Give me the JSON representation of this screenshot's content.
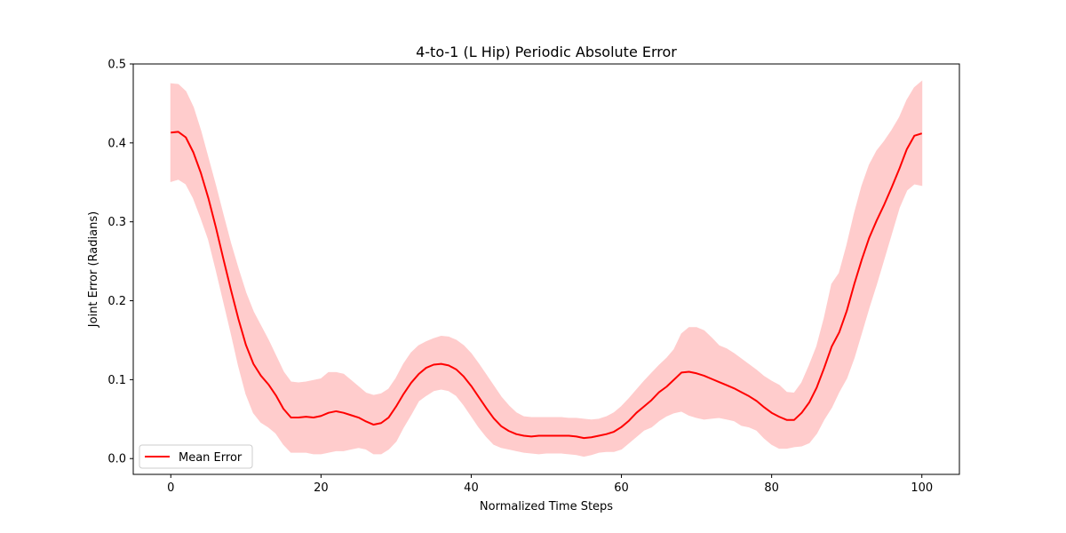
{
  "chart_data": {
    "type": "line",
    "title": "4-to-1 (L Hip) Periodic Absolute Error",
    "xlabel": "Normalized Time Steps",
    "ylabel": "Joint Error (Radians)",
    "xlim": [
      -5,
      105
    ],
    "ylim": [
      -0.02,
      0.5
    ],
    "xticks": [
      0,
      20,
      40,
      60,
      80,
      100
    ],
    "yticks": [
      0.0,
      0.1,
      0.2,
      0.3,
      0.4,
      0.5
    ],
    "xtick_labels": [
      "0",
      "20",
      "40",
      "60",
      "80",
      "100"
    ],
    "ytick_labels": [
      "0.0",
      "0.1",
      "0.2",
      "0.3",
      "0.4",
      "0.5"
    ],
    "grid": false,
    "legend_position": "lower-left",
    "series": [
      {
        "name": "Mean Error",
        "color": "#ff0000",
        "band_color": "#ffcccc",
        "x": [
          0,
          1,
          2,
          3,
          4,
          5,
          6,
          7,
          8,
          9,
          10,
          11,
          12,
          13,
          14,
          15,
          16,
          17,
          18,
          19,
          20,
          21,
          22,
          23,
          24,
          25,
          26,
          27,
          28,
          29,
          30,
          31,
          32,
          33,
          34,
          35,
          36,
          37,
          38,
          39,
          40,
          41,
          42,
          43,
          44,
          45,
          46,
          47,
          48,
          49,
          50,
          51,
          52,
          53,
          54,
          55,
          56,
          57,
          58,
          59,
          60,
          61,
          62,
          63,
          64,
          65,
          66,
          67,
          68,
          69,
          70,
          71,
          72,
          73,
          74,
          75,
          76,
          77,
          78,
          79,
          80,
          81,
          82,
          83,
          84,
          85,
          86,
          87,
          88,
          89,
          90,
          91,
          92,
          93,
          94,
          95,
          96,
          97,
          98,
          99,
          100
        ],
        "mean": [
          0.413,
          0.414,
          0.407,
          0.388,
          0.362,
          0.33,
          0.293,
          0.253,
          0.214,
          0.177,
          0.144,
          0.12,
          0.105,
          0.094,
          0.08,
          0.063,
          0.052,
          0.052,
          0.053,
          0.052,
          0.054,
          0.058,
          0.06,
          0.058,
          0.055,
          0.052,
          0.047,
          0.043,
          0.045,
          0.052,
          0.066,
          0.082,
          0.096,
          0.107,
          0.115,
          0.119,
          0.12,
          0.118,
          0.113,
          0.104,
          0.092,
          0.078,
          0.064,
          0.051,
          0.041,
          0.035,
          0.031,
          0.029,
          0.028,
          0.029,
          0.029,
          0.029,
          0.029,
          0.029,
          0.028,
          0.026,
          0.027,
          0.029,
          0.031,
          0.034,
          0.04,
          0.048,
          0.058,
          0.066,
          0.074,
          0.084,
          0.091,
          0.1,
          0.109,
          0.11,
          0.108,
          0.105,
          0.101,
          0.097,
          0.093,
          0.089,
          0.084,
          0.079,
          0.073,
          0.065,
          0.058,
          0.053,
          0.049,
          0.049,
          0.058,
          0.071,
          0.09,
          0.115,
          0.142,
          0.16,
          0.187,
          0.221,
          0.252,
          0.28,
          0.302,
          0.322,
          0.344,
          0.367,
          0.392,
          0.409,
          0.412
        ],
        "upper": [
          0.475,
          0.474,
          0.465,
          0.445,
          0.415,
          0.38,
          0.345,
          0.308,
          0.272,
          0.24,
          0.21,
          0.186,
          0.168,
          0.15,
          0.13,
          0.11,
          0.097,
          0.096,
          0.097,
          0.099,
          0.101,
          0.109,
          0.109,
          0.107,
          0.099,
          0.091,
          0.083,
          0.08,
          0.082,
          0.088,
          0.102,
          0.12,
          0.134,
          0.143,
          0.148,
          0.152,
          0.155,
          0.154,
          0.15,
          0.143,
          0.133,
          0.12,
          0.106,
          0.092,
          0.078,
          0.067,
          0.058,
          0.053,
          0.052,
          0.052,
          0.052,
          0.052,
          0.052,
          0.051,
          0.051,
          0.05,
          0.049,
          0.05,
          0.053,
          0.058,
          0.066,
          0.076,
          0.087,
          0.098,
          0.108,
          0.118,
          0.127,
          0.138,
          0.158,
          0.166,
          0.166,
          0.162,
          0.153,
          0.143,
          0.139,
          0.133,
          0.126,
          0.119,
          0.112,
          0.104,
          0.098,
          0.093,
          0.084,
          0.083,
          0.096,
          0.118,
          0.142,
          0.178,
          0.221,
          0.235,
          0.27,
          0.31,
          0.345,
          0.372,
          0.39,
          0.402,
          0.416,
          0.432,
          0.454,
          0.47,
          0.478
        ],
        "lower": [
          0.351,
          0.354,
          0.348,
          0.33,
          0.305,
          0.278,
          0.24,
          0.2,
          0.16,
          0.118,
          0.082,
          0.058,
          0.046,
          0.04,
          0.032,
          0.018,
          0.008,
          0.008,
          0.008,
          0.006,
          0.006,
          0.008,
          0.01,
          0.01,
          0.012,
          0.014,
          0.012,
          0.006,
          0.006,
          0.012,
          0.022,
          0.04,
          0.056,
          0.073,
          0.08,
          0.086,
          0.088,
          0.086,
          0.08,
          0.068,
          0.054,
          0.04,
          0.028,
          0.018,
          0.014,
          0.012,
          0.01,
          0.008,
          0.007,
          0.006,
          0.007,
          0.007,
          0.007,
          0.006,
          0.005,
          0.003,
          0.005,
          0.008,
          0.009,
          0.009,
          0.012,
          0.02,
          0.028,
          0.036,
          0.04,
          0.048,
          0.054,
          0.058,
          0.06,
          0.055,
          0.052,
          0.05,
          0.051,
          0.052,
          0.05,
          0.048,
          0.042,
          0.04,
          0.036,
          0.026,
          0.018,
          0.013,
          0.013,
          0.015,
          0.016,
          0.02,
          0.032,
          0.05,
          0.065,
          0.085,
          0.102,
          0.128,
          0.16,
          0.192,
          0.222,
          0.254,
          0.286,
          0.318,
          0.34,
          0.348,
          0.346
        ]
      }
    ]
  }
}
